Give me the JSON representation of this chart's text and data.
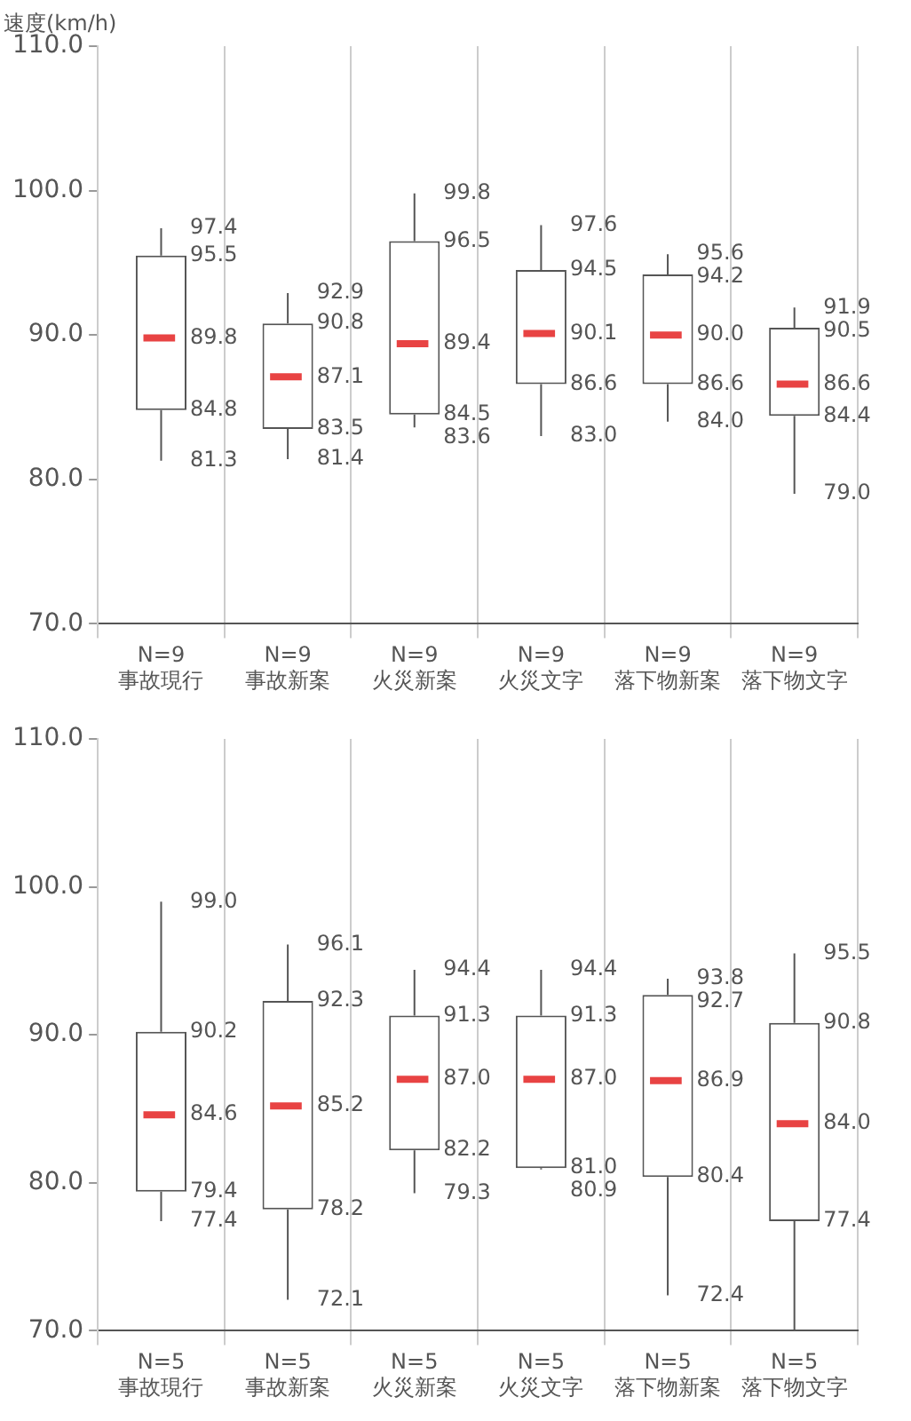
{
  "chart_data": [
    {
      "type": "box",
      "ylabel": "速度(km/h)",
      "categories": [
        "N=9\n事故現行",
        "N=9\n事故新案",
        "N=9\n火災新案",
        "N=9\n火災文字",
        "N=9\n落下物新案",
        "N=9\n落下物文字"
      ],
      "series": [
        {
          "color": "#555555",
          "boxes": [
            {
              "low": 81.3,
              "q1": 84.8,
              "median": 89.8,
              "q3": 95.5,
              "high": 97.4
            },
            {
              "low": 81.4,
              "q1": 83.5,
              "median": 87.1,
              "q3": 90.8,
              "high": 92.9
            },
            {
              "low": 83.6,
              "q1": 84.5,
              "median": 89.4,
              "q3": 96.5,
              "high": 99.8
            },
            {
              "low": 83.0,
              "q1": 86.6,
              "median": 90.1,
              "q3": 94.5,
              "high": 97.6
            },
            {
              "low": 84.0,
              "q1": 86.6,
              "median": 90.0,
              "q3": 94.2,
              "high": 95.6
            },
            {
              "low": 79.0,
              "q1": 84.4,
              "median": 86.6,
              "q3": 90.5,
              "high": 91.9
            }
          ],
          "value_labels": [
            [
              "97.4",
              "95.5",
              "89.8",
              "84.8",
              "81.3"
            ],
            [
              "92.9",
              "90.8",
              "87.1",
              "83.5",
              "81.4"
            ],
            [
              "99.8",
              "96.5",
              "89.4",
              "84.5",
              "83.6"
            ],
            [
              "97.6",
              "94.5",
              "90.1",
              "86.6",
              "83.0"
            ],
            [
              "95.6",
              "94.2",
              "90.0",
              "86.6",
              "84.0"
            ],
            [
              "91.9",
              "90.5",
              "86.6",
              "84.4",
              "79.0"
            ]
          ]
        }
      ],
      "ylim": [
        70,
        110
      ],
      "yticks": [
        {
          "value": 70,
          "label": "70.0"
        },
        {
          "value": 80,
          "label": "80.0"
        },
        {
          "value": 90,
          "label": "90.0"
        },
        {
          "value": 100,
          "label": "100.0"
        },
        {
          "value": 110,
          "label": "110.0"
        }
      ],
      "grid": "x",
      "legend": false
    },
    {
      "type": "box",
      "categories": [
        "N=5\n事故現行",
        "N=5\n事故新案",
        "N=5\n火災新案",
        "N=5\n火災文字",
        "N=5\n落下物新案",
        "N=5\n落下物文字"
      ],
      "series": [
        {
          "color": "#555555",
          "boxes": [
            {
              "low": 77.4,
              "q1": 79.4,
              "median": 84.6,
              "q3": 90.2,
              "high": 99.0
            },
            {
              "low": 72.1,
              "q1": 78.2,
              "median": 85.2,
              "q3": 92.3,
              "high": 96.1
            },
            {
              "low": 79.3,
              "q1": 82.2,
              "median": 87.0,
              "q3": 91.3,
              "high": 94.4
            },
            {
              "low": 80.9,
              "q1": 81.0,
              "median": 87.0,
              "q3": 91.3,
              "high": 94.4
            },
            {
              "low": 72.4,
              "q1": 80.4,
              "median": 86.9,
              "q3": 92.7,
              "high": 93.8
            },
            {
              "low": 70.0,
              "q1": 77.4,
              "median": 84.0,
              "q3": 90.8,
              "high": 95.5
            }
          ],
          "value_labels": [
            [
              "99.0",
              "90.2",
              "84.6",
              "79.4",
              "77.4"
            ],
            [
              "96.1",
              "92.3",
              "85.2",
              "78.2",
              "72.1"
            ],
            [
              "94.4",
              "91.3",
              "87.0",
              "82.2",
              "79.3"
            ],
            [
              "94.4",
              "91.3",
              "87.0",
              "81.0",
              "80.9"
            ],
            [
              "93.8",
              "92.7",
              "86.9",
              "80.4",
              "72.4"
            ],
            [
              "95.5",
              "90.8",
              "84.0",
              "77.4",
              null
            ]
          ]
        }
      ],
      "ylim": [
        70,
        110
      ],
      "yticks": [
        {
          "value": 70,
          "label": "70.0"
        },
        {
          "value": 80,
          "label": "80.0"
        },
        {
          "value": 90,
          "label": "90.0"
        },
        {
          "value": 100,
          "label": "100.0"
        },
        {
          "value": 110,
          "label": "110.0"
        }
      ],
      "grid": "x",
      "legend": false
    }
  ]
}
